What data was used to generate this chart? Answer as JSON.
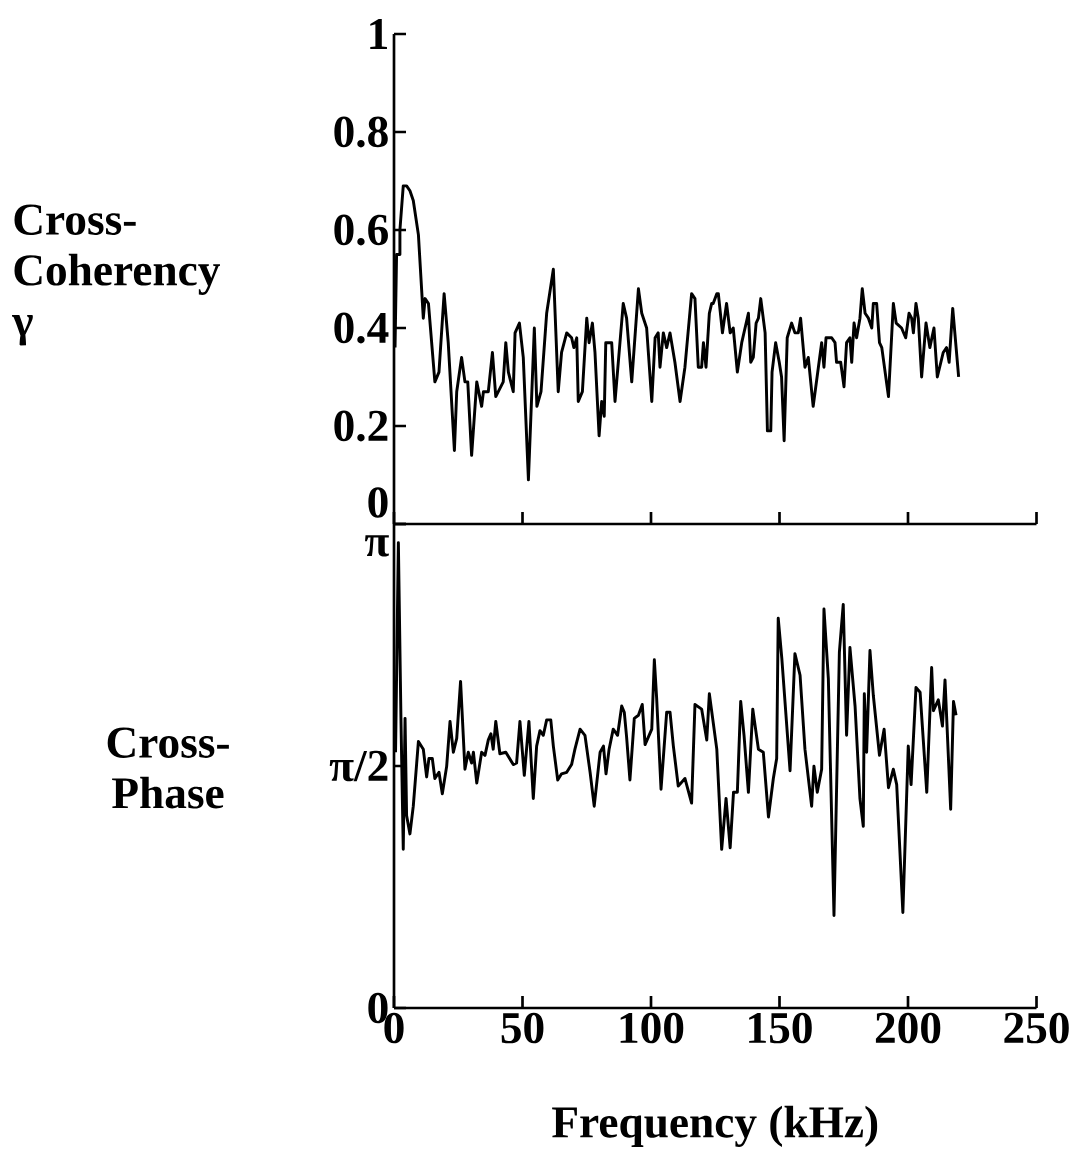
{
  "chart_data": [
    {
      "type": "line",
      "ylabel": "**Cross-Coherency** γ",
      "color": "#000000",
      "marker": "none",
      "line_style": "solid",
      "grid": false,
      "tick_labels": "y",
      "xlim": [
        0,
        250
      ],
      "xticks": [
        0,
        50,
        100,
        150,
        200,
        250
      ],
      "ylim": [
        0,
        1
      ],
      "yticks": [
        0,
        0.2,
        0.4,
        0.6,
        0.8,
        1
      ],
      "x": [
        0.4,
        1.0,
        2.3,
        2.3,
        3.6,
        4.9,
        6.2,
        7.5,
        9.5,
        11.4,
        12.1,
        13.4,
        15.9,
        17.5,
        19.5,
        21.1,
        23.5,
        24.4,
        26.3,
        27.6,
        28.7,
        30.2,
        32.2,
        34.1,
        34.8,
        36.7,
        38.3,
        39.6,
        42.5,
        43.5,
        44.5,
        46.4,
        47.1,
        48.8,
        50.3,
        52.3,
        54.6,
        55.6,
        57.2,
        59.4,
        62.0,
        63.9,
        65.2,
        67.2,
        69.1,
        70.0,
        71.1,
        71.7,
        73.3,
        75.0,
        75.9,
        77.2,
        78.2,
        79.8,
        80.8,
        81.8,
        82.4,
        84.7,
        86.0,
        89.2,
        90.5,
        92.5,
        95.1,
        96.4,
        98.3,
        100.3,
        101.6,
        102.8,
        103.5,
        104.8,
        106.1,
        107.4,
        109.3,
        111.3,
        113.2,
        115.8,
        117.1,
        118.4,
        119.7,
        120.4,
        121.4,
        122.7,
        123.6,
        124.2,
        125.6,
        126.2,
        127.8,
        129.4,
        130.8,
        132.0,
        133.6,
        135.3,
        137.9,
        138.8,
        139.8,
        140.9,
        141.8,
        142.7,
        144.4,
        145.3,
        146.6,
        147.1,
        148.5,
        149.9,
        150.8,
        151.8,
        153.0,
        154.7,
        156.0,
        157.3,
        158.2,
        159.9,
        161.2,
        163.1,
        166.4,
        167.3,
        168.1,
        170.3,
        171.6,
        172.2,
        173.8,
        175.1,
        176.1,
        177.4,
        178.1,
        179.0,
        180.0,
        181.3,
        182.2,
        183.3,
        184.6,
        185.9,
        186.5,
        187.8,
        188.9,
        189.8,
        192.4,
        194.3,
        195.4,
        197.5,
        199.1,
        200.4,
        201.4,
        202.1,
        203.1,
        204.0,
        205.3,
        207.0,
        208.5,
        210.1,
        211.4,
        213.7,
        215.0,
        216.0,
        217.4,
        219.7
      ],
      "values": [
        0.36,
        0.55,
        0.55,
        0.6,
        0.69,
        0.69,
        0.68,
        0.66,
        0.59,
        0.42,
        0.46,
        0.45,
        0.29,
        0.31,
        0.47,
        0.37,
        0.15,
        0.27,
        0.34,
        0.29,
        0.29,
        0.14,
        0.29,
        0.24,
        0.27,
        0.27,
        0.35,
        0.26,
        0.29,
        0.37,
        0.31,
        0.27,
        0.39,
        0.41,
        0.34,
        0.09,
        0.4,
        0.24,
        0.27,
        0.43,
        0.52,
        0.27,
        0.35,
        0.39,
        0.38,
        0.36,
        0.38,
        0.25,
        0.27,
        0.42,
        0.37,
        0.41,
        0.35,
        0.18,
        0.25,
        0.22,
        0.37,
        0.37,
        0.25,
        0.45,
        0.42,
        0.29,
        0.48,
        0.43,
        0.4,
        0.25,
        0.38,
        0.39,
        0.32,
        0.39,
        0.36,
        0.39,
        0.33,
        0.25,
        0.32,
        0.47,
        0.46,
        0.32,
        0.32,
        0.37,
        0.32,
        0.43,
        0.45,
        0.45,
        0.47,
        0.47,
        0.39,
        0.45,
        0.39,
        0.4,
        0.31,
        0.37,
        0.43,
        0.33,
        0.34,
        0.41,
        0.42,
        0.46,
        0.39,
        0.19,
        0.19,
        0.31,
        0.37,
        0.33,
        0.3,
        0.17,
        0.38,
        0.41,
        0.39,
        0.39,
        0.42,
        0.32,
        0.34,
        0.24,
        0.37,
        0.32,
        0.38,
        0.38,
        0.37,
        0.33,
        0.33,
        0.28,
        0.37,
        0.38,
        0.33,
        0.41,
        0.38,
        0.42,
        0.48,
        0.43,
        0.42,
        0.4,
        0.45,
        0.45,
        0.37,
        0.36,
        0.26,
        0.45,
        0.41,
        0.4,
        0.38,
        0.43,
        0.42,
        0.39,
        0.45,
        0.42,
        0.3,
        0.41,
        0.36,
        0.4,
        0.3,
        0.35,
        0.36,
        0.33,
        0.44,
        0.3
      ]
    },
    {
      "type": "line",
      "ylabel": "Cross-Phase",
      "xlabel": "Frequency (kHz)",
      "color": "#000000",
      "marker": "none",
      "line_style": "solid",
      "grid": false,
      "xlim": [
        0,
        250
      ],
      "xticks": [
        0,
        50,
        100,
        150,
        200,
        250
      ],
      "ylim": [
        0,
        3.1416
      ],
      "yticks": [
        0,
        {
          "value": 1.5708,
          "label": "π/2"
        },
        {
          "value": 3.1416,
          "label": "π"
        }
      ],
      "x": [
        0.6,
        1.7,
        2.7,
        3.6,
        4.3,
        4.9,
        6.2,
        7.5,
        9.5,
        11.4,
        12.7,
        13.6,
        14.9,
        15.9,
        17.5,
        18.8,
        20.5,
        21.8,
        23.1,
        24.4,
        25.9,
        27.6,
        28.9,
        30.2,
        30.9,
        32.2,
        34.1,
        35.4,
        36.7,
        37.7,
        38.6,
        39.6,
        41.2,
        43.5,
        46.4,
        47.7,
        49.0,
        50.7,
        52.5,
        54.2,
        55.5,
        56.8,
        58.1,
        59.4,
        61.0,
        62.0,
        63.7,
        65.2,
        67.2,
        69.1,
        70.4,
        72.4,
        74.3,
        76.3,
        77.9,
        80.2,
        81.5,
        82.5,
        83.7,
        85.3,
        87.0,
        88.6,
        89.6,
        90.5,
        91.8,
        93.5,
        95.1,
        96.6,
        97.7,
        99.0,
        100.3,
        101.3,
        102.2,
        103.9,
        106.1,
        107.4,
        108.7,
        110.6,
        113.2,
        115.8,
        117.1,
        119.7,
        121.7,
        122.7,
        125.6,
        127.5,
        129.2,
        130.8,
        132.1,
        133.6,
        134.9,
        136.2,
        137.9,
        139.6,
        141.8,
        143.7,
        145.7,
        147.6,
        148.9,
        149.5,
        150.9,
        154.1,
        156.0,
        158.0,
        159.9,
        162.5,
        163.4,
        164.7,
        166.4,
        167.3,
        169.0,
        171.2,
        173.3,
        174.8,
        176.1,
        177.4,
        179.4,
        181.3,
        182.6,
        183.0,
        183.9,
        185.2,
        186.5,
        188.9,
        190.7,
        192.4,
        194.3,
        195.6,
        198.0,
        200.1,
        201.2,
        203.1,
        204.7,
        207.3,
        209.2,
        209.9,
        211.8,
        213.4,
        214.4,
        216.6,
        217.7,
        218.7
      ],
      "values": [
        1.66,
        3.02,
        1.88,
        1.03,
        1.88,
        1.25,
        1.13,
        1.31,
        1.73,
        1.68,
        1.5,
        1.62,
        1.62,
        1.49,
        1.53,
        1.39,
        1.57,
        1.86,
        1.66,
        1.75,
        2.12,
        1.55,
        1.66,
        1.59,
        1.66,
        1.46,
        1.66,
        1.64,
        1.74,
        1.78,
        1.68,
        1.86,
        1.65,
        1.66,
        1.58,
        1.59,
        1.86,
        1.51,
        1.86,
        1.36,
        1.7,
        1.8,
        1.77,
        1.87,
        1.87,
        1.7,
        1.48,
        1.52,
        1.53,
        1.58,
        1.68,
        1.81,
        1.77,
        1.53,
        1.31,
        1.66,
        1.7,
        1.52,
        1.68,
        1.81,
        1.77,
        1.96,
        1.92,
        1.76,
        1.48,
        1.88,
        1.9,
        1.97,
        1.71,
        1.76,
        1.81,
        2.26,
        2.01,
        1.42,
        1.92,
        1.92,
        1.7,
        1.44,
        1.49,
        1.33,
        1.97,
        1.94,
        1.74,
        2.04,
        1.68,
        1.03,
        1.36,
        1.04,
        1.4,
        1.4,
        1.99,
        1.77,
        1.4,
        1.94,
        1.68,
        1.66,
        1.24,
        1.49,
        1.62,
        2.53,
        2.27,
        1.54,
        2.3,
        2.16,
        1.68,
        1.31,
        1.57,
        1.4,
        1.55,
        2.59,
        2.14,
        0.6,
        2.31,
        2.62,
        1.77,
        2.34,
        1.96,
        1.36,
        1.18,
        2.04,
        1.66,
        2.32,
        2.03,
        1.64,
        1.81,
        1.43,
        1.55,
        1.45,
        0.62,
        1.7,
        1.45,
        2.08,
        2.05,
        1.4,
        2.21,
        1.93,
        2.0,
        1.83,
        2.13,
        1.29,
        1.99,
        1.9
      ]
    }
  ]
}
